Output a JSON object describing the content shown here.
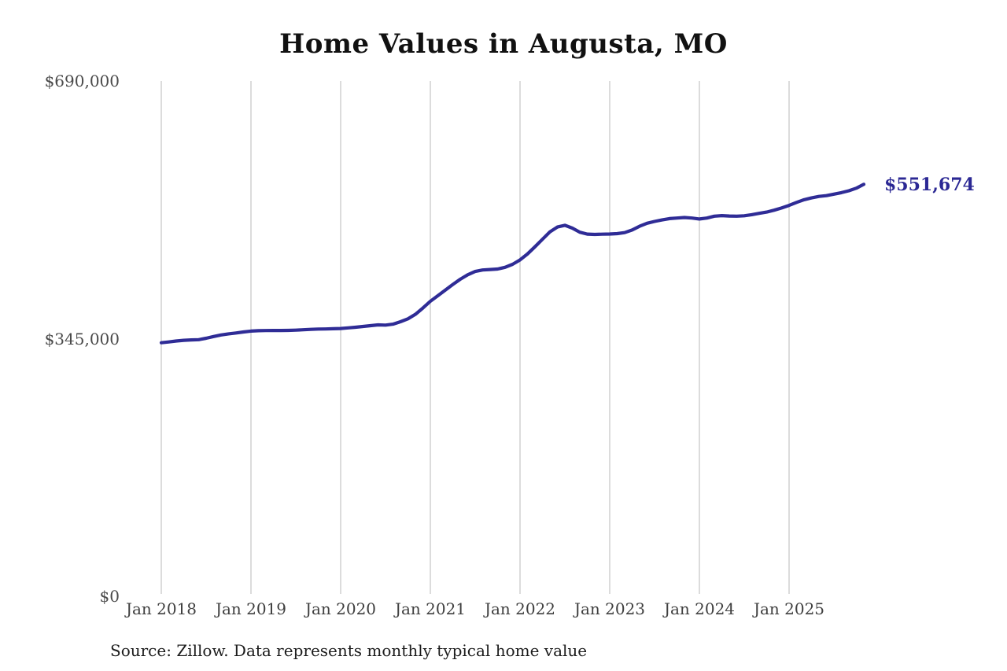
{
  "title": "Home Values in Augusta, MO",
  "source_note": "Source: Zillow. Data represents monthly typical home value",
  "colors": {
    "line": "#2f2c96",
    "end_label": "#2b2894",
    "gridline": "#c9c9c9",
    "tick_text": "#4a4a4a",
    "title_text": "#111111"
  },
  "chart_data": {
    "type": "line",
    "title": "Home Values in Augusta, MO",
    "xlabel": "",
    "ylabel": "",
    "ylim": [
      0,
      690000
    ],
    "grid": "vertical-only",
    "legend": "none",
    "y_ticks": [
      {
        "label": "$0",
        "value": 0
      },
      {
        "label": "$345,000",
        "value": 345000
      },
      {
        "label": "$690,000",
        "value": 690000
      }
    ],
    "x_ticks": [
      "Jan 2018",
      "Jan 2019",
      "Jan 2020",
      "Jan 2021",
      "Jan 2022",
      "Jan 2023",
      "Jan 2024",
      "Jan 2025"
    ],
    "x_start_month": "2018-01",
    "x_frequency": "monthly",
    "end_label": "$551,674",
    "last_value": 551674,
    "last_month": "2025-11",
    "series": [
      {
        "name": "Typical home value",
        "values": [
          339500,
          340600,
          341800,
          342800,
          343300,
          343600,
          345500,
          347800,
          349900,
          351400,
          352600,
          354000,
          355100,
          355600,
          355900,
          356000,
          356000,
          356100,
          356400,
          356900,
          357400,
          357800,
          358000,
          358300,
          358600,
          359400,
          360300,
          361300,
          362400,
          363400,
          363100,
          364400,
          367600,
          371500,
          377500,
          386000,
          395000,
          402500,
          410000,
          417500,
          424500,
          430500,
          435000,
          437000,
          437600,
          438200,
          440500,
          444500,
          450500,
          458500,
          468000,
          478000,
          488000,
          494500,
          496800,
          493000,
          487500,
          485000,
          484600,
          484900,
          485100,
          485600,
          487000,
          490500,
          495500,
          499500,
          502000,
          504000,
          505800,
          506500,
          507200,
          506500,
          505200,
          506500,
          509000,
          509800,
          509200,
          509000,
          509500,
          511000,
          512800,
          514500,
          517000,
          520000,
          523500,
          527500,
          531000,
          533500,
          535500,
          536500,
          538500,
          540500,
          543000,
          546500,
          551674
        ]
      }
    ]
  }
}
